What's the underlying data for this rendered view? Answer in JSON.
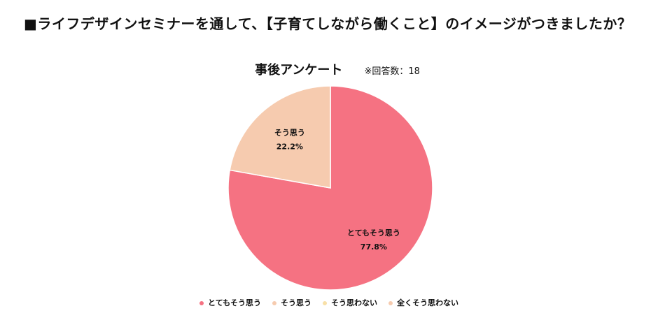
{
  "header": {
    "title": "■ライフデザインセミナーを通して、【子育てしながら働くこと】のイメージがつきましたか？"
  },
  "chart_data": {
    "type": "pie",
    "title": "事後アンケート",
    "note": "※回答数：18",
    "legend_position": "bottom",
    "slices": [
      {
        "label": "とてもそう思う",
        "value": 77.8,
        "value_label": "77.8%",
        "color": "#f57282"
      },
      {
        "label": "そう思う",
        "value": 22.2,
        "value_label": "22.2%",
        "color": "#f6cbaf"
      },
      {
        "label": "そう思わない",
        "value": 0,
        "value_label": "",
        "color": "#f8e0a8"
      },
      {
        "label": "全くそう思わない",
        "value": 0,
        "value_label": "",
        "color": "#f6cbaf"
      }
    ]
  }
}
